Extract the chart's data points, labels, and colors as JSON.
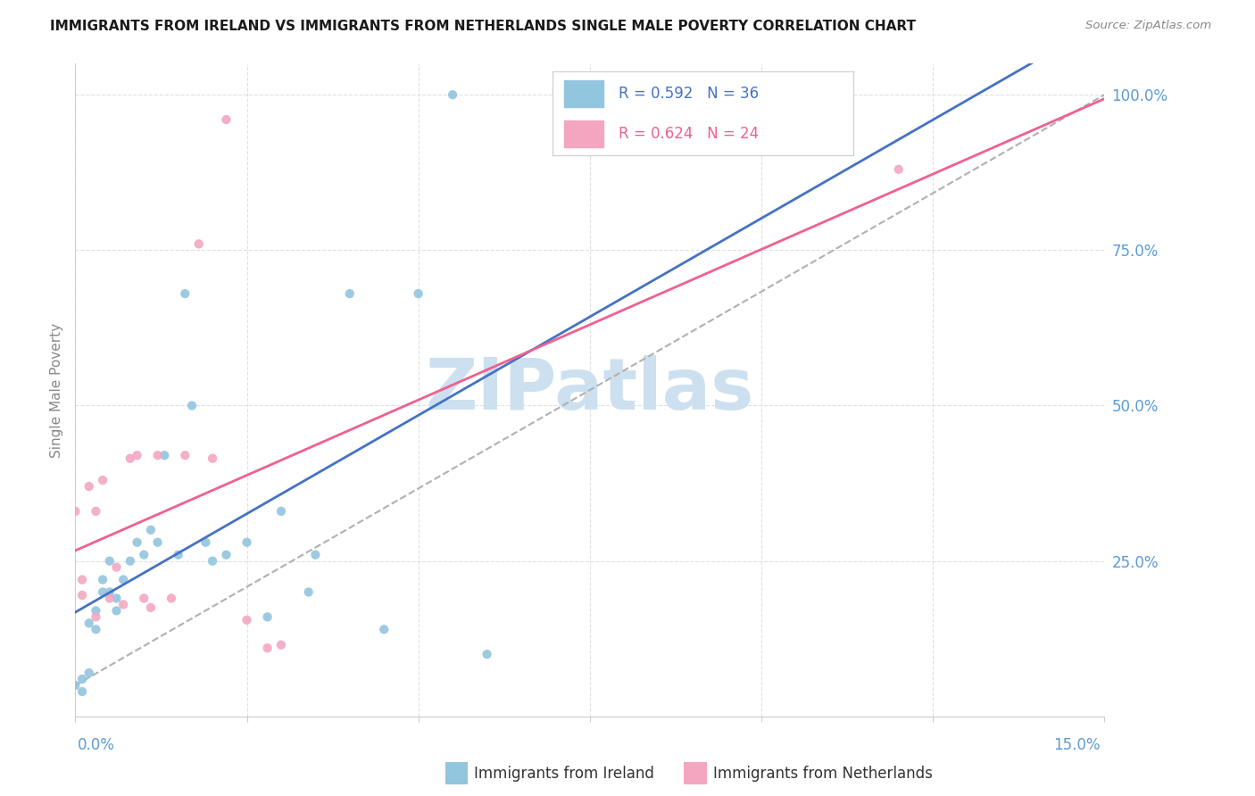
{
  "title": "IMMIGRANTS FROM IRELAND VS IMMIGRANTS FROM NETHERLANDS SINGLE MALE POVERTY CORRELATION CHART",
  "source": "Source: ZipAtlas.com",
  "ylabel": "Single Male Poverty",
  "ireland_color": "#92c5de",
  "netherlands_color": "#f4a6c0",
  "ireland_line_color": "#4472c4",
  "netherlands_line_color": "#f06090",
  "ref_line_color": "#b0b0b0",
  "legend_ireland_text": "R = 0.592   N = 36",
  "legend_netherlands_text": "R = 0.624   N = 24",
  "ireland_x": [
    0.0,
    0.001,
    0.001,
    0.002,
    0.002,
    0.003,
    0.003,
    0.004,
    0.004,
    0.005,
    0.005,
    0.006,
    0.006,
    0.007,
    0.008,
    0.009,
    0.01,
    0.011,
    0.012,
    0.013,
    0.015,
    0.016,
    0.017,
    0.019,
    0.02,
    0.022,
    0.025,
    0.028,
    0.03,
    0.035,
    0.04,
    0.045,
    0.05,
    0.055,
    0.06,
    0.034
  ],
  "ireland_y": [
    0.05,
    0.04,
    0.06,
    0.07,
    0.15,
    0.14,
    0.17,
    0.2,
    0.22,
    0.25,
    0.2,
    0.17,
    0.19,
    0.22,
    0.25,
    0.28,
    0.26,
    0.3,
    0.28,
    0.42,
    0.26,
    0.68,
    0.5,
    0.28,
    0.25,
    0.26,
    0.28,
    0.16,
    0.33,
    0.26,
    0.68,
    0.14,
    0.68,
    1.0,
    0.1,
    0.2
  ],
  "netherlands_x": [
    0.0,
    0.001,
    0.001,
    0.002,
    0.003,
    0.003,
    0.004,
    0.005,
    0.006,
    0.007,
    0.008,
    0.009,
    0.01,
    0.011,
    0.012,
    0.014,
    0.016,
    0.018,
    0.02,
    0.022,
    0.025,
    0.028,
    0.03,
    0.12
  ],
  "netherlands_y": [
    0.33,
    0.195,
    0.22,
    0.37,
    0.16,
    0.33,
    0.38,
    0.19,
    0.24,
    0.18,
    0.415,
    0.42,
    0.19,
    0.175,
    0.42,
    0.19,
    0.42,
    0.76,
    0.415,
    0.96,
    0.155,
    0.11,
    0.115,
    0.88
  ],
  "xmin": 0.0,
  "xmax": 0.15,
  "ymin": 0.0,
  "ymax": 1.05,
  "ytick_vals": [
    0.0,
    0.25,
    0.5,
    0.75,
    1.0
  ],
  "ytick_labels": [
    "",
    "25.0%",
    "50.0%",
    "75.0%",
    "100.0%"
  ],
  "xtick_vals": [
    0.0,
    0.025,
    0.05,
    0.075,
    0.1,
    0.125,
    0.15
  ],
  "grid_color": "#e0e0e0",
  "title_fontsize": 11,
  "axis_label_color": "#5b9bd5",
  "ylabel_color": "#888888",
  "watermark_text": "ZIPatlas",
  "watermark_color": "#cce0f0"
}
